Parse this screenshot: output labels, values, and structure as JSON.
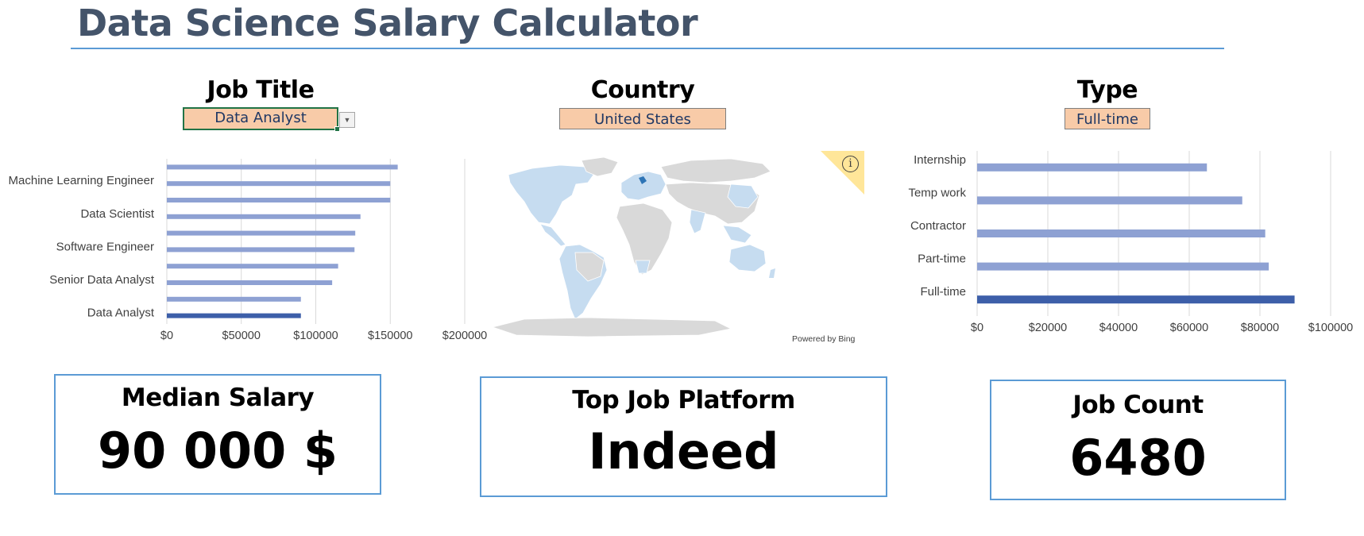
{
  "page": {
    "title": "Data Science Salary Calculator"
  },
  "filters": {
    "job_title": {
      "label": "Job Title",
      "value": "Data Analyst"
    },
    "country": {
      "label": "Country",
      "value": "United States"
    },
    "type": {
      "label": "Type",
      "value": "Full-time"
    }
  },
  "map": {
    "attribution": "Powered by Bing",
    "info_icon": "i"
  },
  "kpis": {
    "median_salary": {
      "title": "Median Salary",
      "value": "90 000  $"
    },
    "top_platform": {
      "title": "Top Job Platform",
      "value": "Indeed"
    },
    "job_count": {
      "title": "Job Count",
      "value": "6480"
    }
  },
  "colors": {
    "highlight_bar": "#3d5fa9",
    "bar": "#8ea1d3",
    "slicer_fill": "#f8cba8",
    "card_border": "#5b9bd5",
    "title_text": "#44546a",
    "map_land": "#d9d9d9",
    "map_highlight": "#c6dcf0",
    "map_selected": "#2e75b6"
  },
  "chart_data": [
    {
      "type": "bar",
      "orientation": "horizontal",
      "highlight_category": "Data Analyst",
      "categories": [
        "Data Analyst",
        "",
        "Senior Data Analyst",
        "",
        "Software Engineer",
        "",
        "Data Scientist",
        "",
        "Machine Learning Engineer",
        ""
      ],
      "values": [
        90000,
        90000,
        111000,
        115000,
        126000,
        126500,
        130000,
        150000,
        150000,
        155000
      ],
      "xlim": [
        0,
        200000
      ],
      "xticks": [
        "$0",
        "$50000",
        "$100000",
        "$150000",
        "$200000"
      ],
      "grid": true
    },
    {
      "type": "bar",
      "orientation": "horizontal",
      "highlight_category": "Full-time",
      "categories": [
        "Full-time",
        "Part-time",
        "Contractor",
        "Temp work",
        "Internship"
      ],
      "values": [
        89800,
        82500,
        81500,
        75000,
        65000
      ],
      "xlim": [
        0,
        100000
      ],
      "xticks": [
        "$0",
        "$20000",
        "$40000",
        "$60000",
        "$80000",
        "$100000"
      ],
      "grid": true
    }
  ]
}
